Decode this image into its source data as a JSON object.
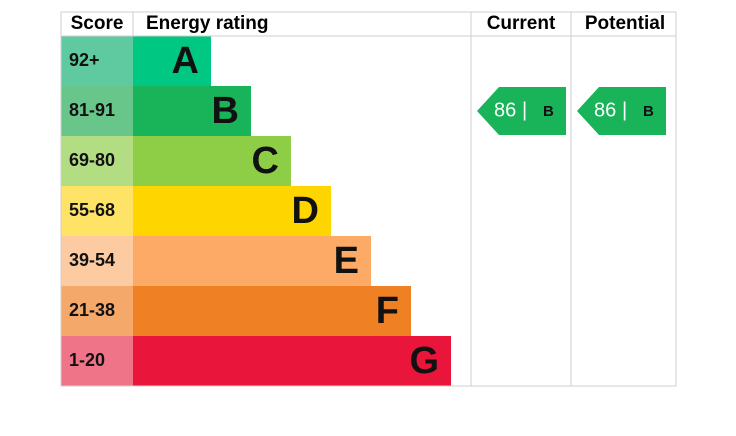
{
  "header": {
    "score": "Score",
    "rating": "Energy rating",
    "current": "Current",
    "potential": "Potential"
  },
  "bands": [
    {
      "score": "92+",
      "letter": "A",
      "color": "#00c781",
      "score_color": "#5fc9a0"
    },
    {
      "score": "81-91",
      "letter": "B",
      "color": "#19b459",
      "score_color": "#69c68b"
    },
    {
      "score": "69-80",
      "letter": "C",
      "color": "#8dce46",
      "score_color": "#b3dd83"
    },
    {
      "score": "55-68",
      "letter": "D",
      "color": "#ffd500",
      "score_color": "#ffe366"
    },
    {
      "score": "39-54",
      "letter": "E",
      "color": "#fcaa65",
      "score_color": "#fccba1"
    },
    {
      "score": "21-38",
      "letter": "F",
      "color": "#ef8023",
      "score_color": "#f4a86a"
    },
    {
      "score": "1-20",
      "letter": "G",
      "color": "#e9153b",
      "score_color": "#f07488"
    }
  ],
  "current": {
    "score": 86,
    "separator": "|",
    "letter": "B"
  },
  "potential": {
    "score": 86,
    "separator": "|",
    "letter": "B"
  }
}
